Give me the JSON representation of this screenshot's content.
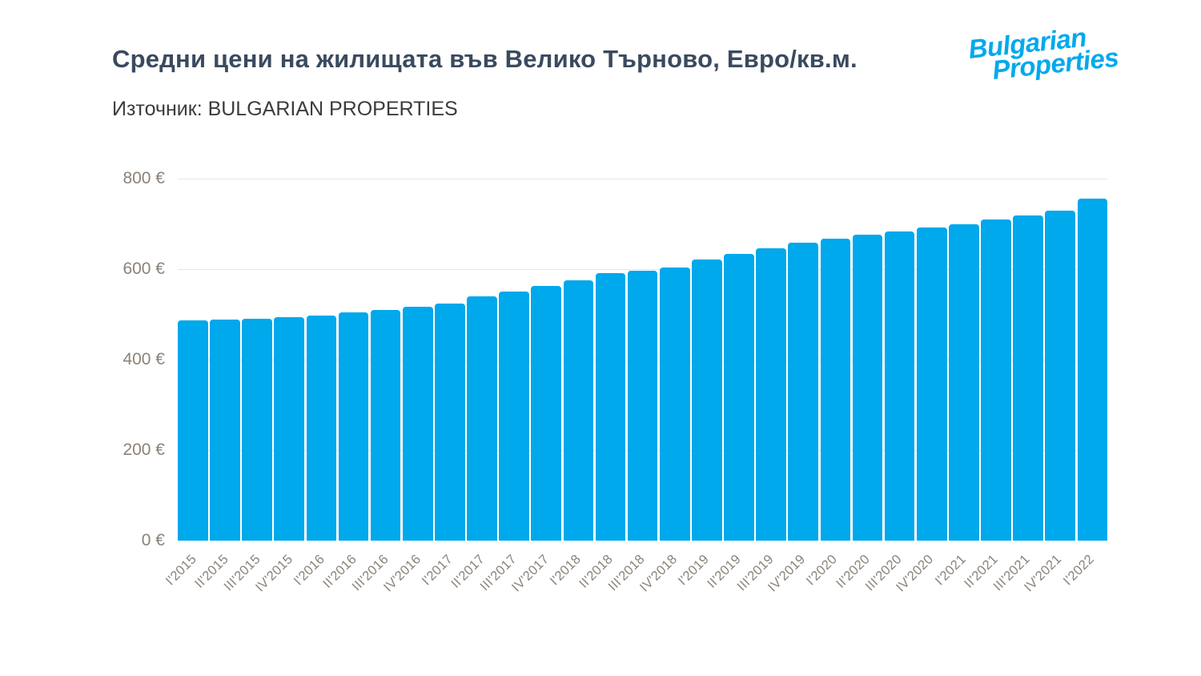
{
  "header": {
    "title": "Средни цени на жилищата във Велико Търново, Евро/кв.м.",
    "source": "Източник: BULGARIAN PROPERTIES"
  },
  "logo": {
    "line1": "Bulgarian",
    "line2": "Properties"
  },
  "colors": {
    "bar": "#00A8EC",
    "logo": "#00A9EC",
    "title": "#3A4A5F",
    "source_text": "#3C3C3C",
    "axis_label": "#8C8277",
    "gridline": "#E8E5E1",
    "background": "#FFFFFF"
  },
  "chart_data": {
    "type": "bar",
    "title": "Средни цени на жилищата във Велико Търново, Евро/кв.м.",
    "source": "Източник: BULGARIAN PROPERTIES",
    "xlabel": "",
    "ylabel": "Евро/кв.м.",
    "ylim": [
      0,
      800
    ],
    "grid": true,
    "legend": "none",
    "y_ticks": [
      0,
      200,
      400,
      600,
      800
    ],
    "y_tick_labels": [
      "0 €",
      "200 €",
      "400 €",
      "600 €",
      "800 €"
    ],
    "categories": [
      "I'2015",
      "II'2015",
      "III'2015",
      "IV'2015",
      "I'2016",
      "II'2016",
      "III'2016",
      "IV'2016",
      "I'2017",
      "II'2017",
      "III'2017",
      "IV'2017",
      "I'2018",
      "II'2018",
      "III'2018",
      "IV'2018",
      "I'2019",
      "II'2019",
      "III'2019",
      "IV'2019",
      "I'2020",
      "II'2020",
      "III'2020",
      "IV'2020",
      "I'2021",
      "II'2021",
      "III'2021",
      "IV'2021",
      "I'2022"
    ],
    "values": [
      486,
      488,
      490,
      493,
      498,
      505,
      509,
      517,
      524,
      540,
      551,
      563,
      576,
      591,
      597,
      604,
      621,
      634,
      646,
      658,
      667,
      676,
      683,
      692,
      699,
      709,
      718,
      730,
      755
    ],
    "unit": "€/sq.m."
  }
}
